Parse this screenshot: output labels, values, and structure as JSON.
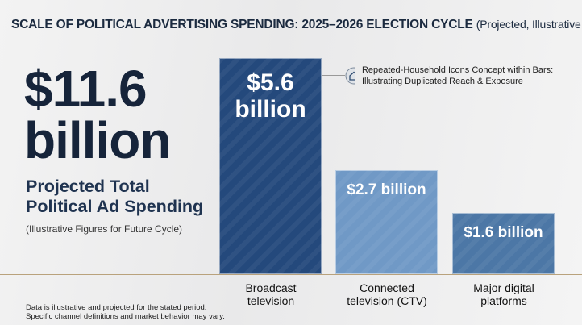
{
  "chart_data": {
    "type": "bar",
    "title": "SCALE OF POLITICAL ADVERTISING SPENDING: 2025–2026 ELECTION CYCLE",
    "subtitle": "(Projected, Illustrative Data)",
    "headline": "$11.6 billion",
    "headline_caption": "Projected Total Political Ad Spending",
    "headline_note": "(Illustrative Figures for Future Cycle)",
    "annotation": "Repeated-Household Icons Concept within Bars: Illustrating Duplicated Reach & Exposure",
    "footnote": "Data is illustrative and projected for the stated period. Specific channel definitions and market behavior may vary.",
    "categories": [
      "Broadcast television",
      "Connected television (CTV)",
      "Major digital platforms"
    ],
    "values": [
      5.6,
      2.7,
      1.6
    ],
    "value_labels": [
      "$5.6 billion",
      "$2.7 billion",
      "$1.6 billion"
    ],
    "colors": [
      "#24497c",
      "#7099c6",
      "#4c77a6"
    ]
  }
}
